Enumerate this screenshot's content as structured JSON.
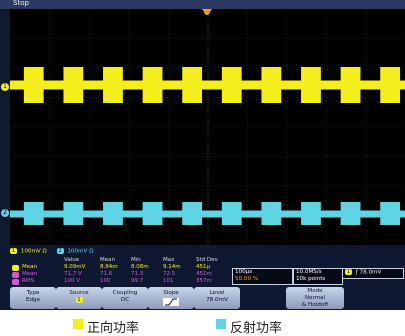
{
  "status": {
    "state": "Stop"
  },
  "colors": {
    "ch1": "#f4ef1c",
    "ch2": "#5ed4e4",
    "math": "#d25ad6",
    "bg": "#000000"
  },
  "channel_bar": [
    {
      "num": "1",
      "scale": "100mV",
      "coupling": "Ω"
    },
    {
      "num": "2",
      "scale": "100mV",
      "coupling": "Ω"
    }
  ],
  "measurements": {
    "headers": [
      "Value",
      "Mean",
      "Min",
      "Max",
      "Std Dev"
    ],
    "rows": [
      {
        "ch": "1",
        "name": "Mean",
        "value": "9.09mV",
        "mean": "8.84m",
        "min": "8.08m",
        "max": "9.14m",
        "std": "451μ"
      },
      {
        "ch": "2",
        "name": "Mean",
        "value": "71.7 V",
        "mean": "71.6",
        "min": "71.3",
        "max": "72.5",
        "std": "451m"
      },
      {
        "ch": "3",
        "name": "RMS",
        "value": "100 V",
        "mean": "100",
        "min": "99.7",
        "max": "101",
        "std": "357m"
      }
    ]
  },
  "timebase": {
    "scale": "100μs",
    "delay": "50.00 %"
  },
  "acquisition": {
    "rate": "10.0MS/s",
    "length": "10k points"
  },
  "trigger": {
    "channel": "1",
    "slope_glyph": "ƒ",
    "level": "78.0mV"
  },
  "softkeys": {
    "type": {
      "label": "Type",
      "value": "Edge"
    },
    "source": {
      "label": "Source",
      "value": "1"
    },
    "coupling": {
      "label": "Coupling",
      "value": "DC"
    },
    "slope": {
      "label": "Slope"
    },
    "level": {
      "label": "Level",
      "value": "78.0mV"
    },
    "mode": {
      "label": "Mode",
      "value": "Normal",
      "extra": "& Holdoff"
    }
  },
  "legend": [
    {
      "label": "正向功率",
      "color": "#f4ef1c"
    },
    {
      "label": "反射功率",
      "color": "#5ed4e4"
    }
  ],
  "waveforms": {
    "ch1": {
      "bursts": 10,
      "duty": 0.5,
      "high_level": 1.0,
      "low_level": 0.55
    },
    "ch2": {
      "bursts": 10,
      "duty": 0.5,
      "high_level": 1.0,
      "low_level": 0.45
    }
  }
}
